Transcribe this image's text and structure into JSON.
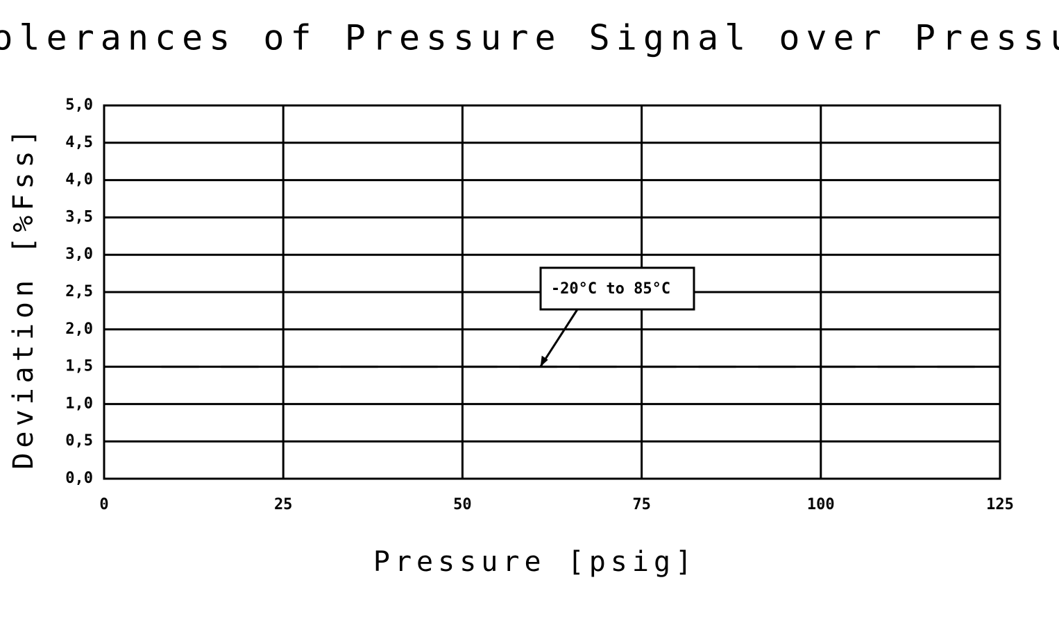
{
  "chart_data": {
    "type": "line",
    "title": "Tolerances of Pressure Signal over Pressure",
    "x_label": "Pressure [psig]",
    "y_label": "Deviation [%Fss]",
    "x": [
      8,
      125
    ],
    "series": [
      {
        "name": "-20°C to 85°C",
        "color": "#000000",
        "values": [
          1.5,
          1.5
        ]
      }
    ],
    "xlim": [
      0,
      125
    ],
    "ylim": [
      0,
      5
    ],
    "xticks": [
      0,
      25,
      50,
      75,
      100,
      125
    ],
    "yticks": [
      {
        "value": 0,
        "label": "0,0"
      },
      {
        "value": 0.5,
        "label": "0,5"
      },
      {
        "value": 1,
        "label": "1,0"
      },
      {
        "value": 1.5,
        "label": "1,5"
      },
      {
        "value": 2,
        "label": "2,0"
      },
      {
        "value": 2.5,
        "label": "2,5"
      },
      {
        "value": 3,
        "label": "3,0"
      },
      {
        "value": 3.5,
        "label": "3,5"
      },
      {
        "value": 4,
        "label": "4,0"
      },
      {
        "value": 4.5,
        "label": "4,5"
      },
      {
        "value": 5,
        "label": "5,0"
      }
    ],
    "grid": true
  }
}
